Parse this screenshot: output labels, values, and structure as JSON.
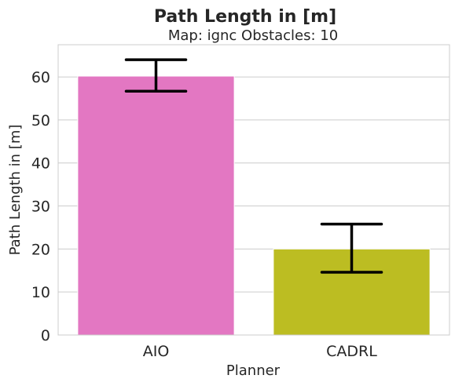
{
  "chart_data": {
    "type": "bar",
    "title": "Path Length in [m]",
    "subtitle": "Map: ignc Obstacles: 10",
    "xlabel": "Planner",
    "ylabel": "Path Length in [m]",
    "categories": [
      "AIO",
      "CADRL"
    ],
    "values": [
      60.2,
      20.0
    ],
    "error_low": [
      56.7,
      14.6
    ],
    "error_high": [
      64.0,
      25.8
    ],
    "bar_colors": [
      "#e377c2",
      "#bcbd22"
    ],
    "ylim": [
      0,
      67.5
    ],
    "yticks": [
      "0",
      "10",
      "20",
      "30",
      "40",
      "50",
      "60"
    ],
    "grid": true
  }
}
